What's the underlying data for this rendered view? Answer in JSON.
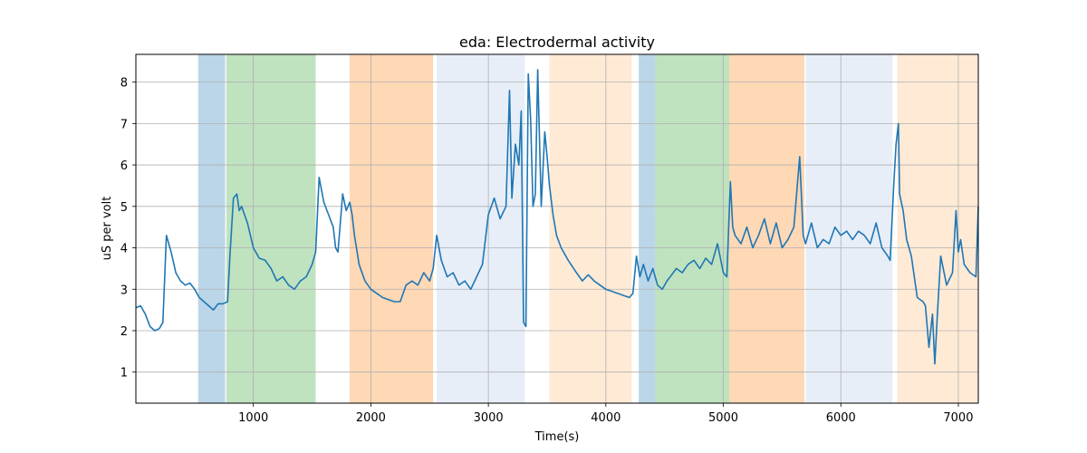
{
  "chart_data": {
    "type": "line",
    "title": "eda: Electrodermal activity",
    "xlabel": "Time(s)",
    "ylabel": "uS per volt",
    "xlim": [
      0,
      7170
    ],
    "ylim": [
      0.25,
      8.67
    ],
    "xticks": [
      1000,
      2000,
      3000,
      4000,
      5000,
      6000,
      7000
    ],
    "yticks": [
      1,
      2,
      3,
      4,
      5,
      6,
      7,
      8
    ],
    "grid": true,
    "line_color": "#1f77b4",
    "shaded_regions": [
      {
        "start": 530,
        "end": 760,
        "color": "#1f77b4",
        "opacity": 0.3
      },
      {
        "start": 770,
        "end": 1530,
        "color": "#2ca02c",
        "opacity": 0.3
      },
      {
        "start": 1820,
        "end": 2530,
        "color": "#ff7f0e",
        "opacity": 0.3
      },
      {
        "start": 2560,
        "end": 3310,
        "color": "#aec7e8",
        "opacity": 0.3
      },
      {
        "start": 3520,
        "end": 4220,
        "color": "#ffbb78",
        "opacity": 0.3
      },
      {
        "start": 4280,
        "end": 4420,
        "color": "#1f77b4",
        "opacity": 0.3
      },
      {
        "start": 4420,
        "end": 5050,
        "color": "#2ca02c",
        "opacity": 0.3
      },
      {
        "start": 5050,
        "end": 5690,
        "color": "#ff7f0e",
        "opacity": 0.3
      },
      {
        "start": 5700,
        "end": 6440,
        "color": "#aec7e8",
        "opacity": 0.3
      },
      {
        "start": 6480,
        "end": 7170,
        "color": "#ffbb78",
        "opacity": 0.3
      }
    ],
    "series": [
      {
        "x": [
          0,
          40,
          80,
          120,
          160,
          200,
          230,
          260,
          300,
          340,
          380,
          420,
          460,
          500,
          540,
          580,
          620,
          660,
          700,
          740,
          780,
          800,
          830,
          860,
          880,
          900,
          950,
          1000,
          1050,
          1100,
          1150,
          1200,
          1250,
          1300,
          1350,
          1400,
          1450,
          1500,
          1530,
          1560,
          1600,
          1640,
          1680,
          1700,
          1720,
          1760,
          1790,
          1820,
          1840,
          1860,
          1900,
          1950,
          2000,
          2050,
          2100,
          2150,
          2200,
          2250,
          2300,
          2350,
          2400,
          2450,
          2500,
          2530,
          2560,
          2600,
          2650,
          2700,
          2750,
          2800,
          2850,
          2900,
          2950,
          3000,
          3050,
          3100,
          3150,
          3180,
          3200,
          3230,
          3260,
          3280,
          3300,
          3320,
          3340,
          3360,
          3380,
          3400,
          3420,
          3430,
          3450,
          3480,
          3500,
          3520,
          3550,
          3580,
          3620,
          3680,
          3750,
          3800,
          3850,
          3900,
          3950,
          4000,
          4050,
          4100,
          4150,
          4200,
          4230,
          4260,
          4290,
          4320,
          4360,
          4400,
          4440,
          4480,
          4520,
          4560,
          4600,
          4650,
          4700,
          4750,
          4800,
          4850,
          4900,
          4950,
          5000,
          5030,
          5060,
          5080,
          5100,
          5150,
          5200,
          5250,
          5300,
          5350,
          5400,
          5450,
          5500,
          5550,
          5600,
          5650,
          5680,
          5700,
          5750,
          5800,
          5850,
          5900,
          5950,
          6000,
          6050,
          6100,
          6150,
          6200,
          6250,
          6300,
          6350,
          6400,
          6420,
          6450,
          6470,
          6490,
          6500,
          6530,
          6560,
          6600,
          6650,
          6700,
          6720,
          6750,
          6780,
          6800,
          6820,
          6850,
          6900,
          6950,
          6980,
          7000,
          7020,
          7050,
          7100,
          7150,
          7170
        ],
        "y": [
          2.55,
          2.6,
          2.4,
          2.1,
          2.0,
          2.05,
          2.2,
          4.3,
          3.9,
          3.4,
          3.2,
          3.1,
          3.15,
          3.0,
          2.8,
          2.7,
          2.6,
          2.5,
          2.65,
          2.65,
          2.7,
          3.8,
          5.2,
          5.3,
          4.9,
          5.0,
          4.6,
          4.0,
          3.75,
          3.7,
          3.5,
          3.2,
          3.3,
          3.1,
          3.0,
          3.2,
          3.3,
          3.6,
          3.9,
          5.7,
          5.1,
          4.8,
          4.5,
          4.0,
          3.9,
          5.3,
          4.9,
          5.1,
          4.8,
          4.3,
          3.6,
          3.2,
          3.0,
          2.9,
          2.8,
          2.75,
          2.7,
          2.7,
          3.1,
          3.2,
          3.1,
          3.4,
          3.2,
          3.5,
          4.3,
          3.7,
          3.3,
          3.4,
          3.1,
          3.2,
          3.0,
          3.3,
          3.6,
          4.8,
          5.2,
          4.7,
          5.0,
          7.8,
          5.2,
          6.5,
          6.0,
          7.3,
          2.2,
          2.1,
          8.2,
          7.1,
          5.0,
          5.3,
          8.3,
          7.2,
          5.0,
          6.8,
          6.2,
          5.5,
          4.8,
          4.3,
          4.0,
          3.7,
          3.4,
          3.2,
          3.35,
          3.2,
          3.1,
          3.0,
          2.95,
          2.9,
          2.85,
          2.8,
          2.9,
          3.8,
          3.3,
          3.6,
          3.2,
          3.5,
          3.1,
          3.0,
          3.2,
          3.35,
          3.5,
          3.4,
          3.6,
          3.7,
          3.5,
          3.75,
          3.6,
          4.1,
          3.4,
          3.3,
          5.6,
          4.5,
          4.3,
          4.1,
          4.5,
          4.0,
          4.3,
          4.7,
          4.1,
          4.6,
          4.0,
          4.2,
          4.5,
          6.2,
          4.3,
          4.1,
          4.6,
          4.0,
          4.2,
          4.1,
          4.5,
          4.3,
          4.4,
          4.2,
          4.4,
          4.3,
          4.1,
          4.6,
          4.0,
          3.8,
          3.7,
          5.5,
          6.5,
          7.0,
          5.3,
          4.9,
          4.2,
          3.8,
          2.8,
          2.7,
          2.6,
          1.6,
          2.4,
          1.2,
          2.3,
          3.8,
          3.1,
          3.4,
          4.9,
          3.9,
          4.2,
          3.6,
          3.4,
          3.3,
          5.0
        ]
      }
    ]
  }
}
